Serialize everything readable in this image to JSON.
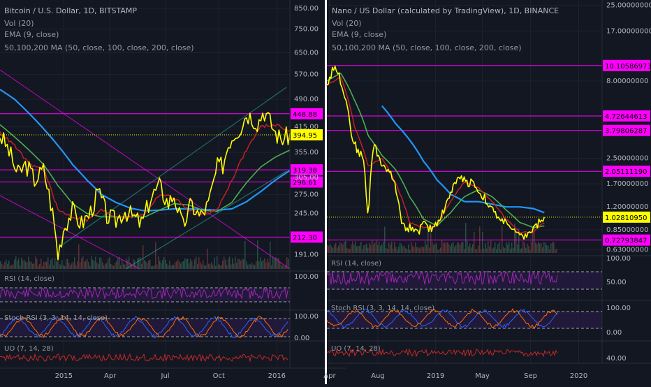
{
  "colors": {
    "background": "#131722",
    "divider": "#ffffff",
    "price_line": "#ffff00",
    "ema": "#c42026",
    "ma50": "#4caf50",
    "ma100": "#2196f3",
    "ma200": "#ffffff",
    "level": "#ff00ff",
    "rsi": "#9c27b0",
    "stoch_k": "#2962ff",
    "stoch_d": "#ff6d00",
    "uo": "#c62828",
    "volume": "#7a3a3a",
    "grid": "#1e2230",
    "label_text": "#b2b5be"
  },
  "chart_data": [
    {
      "type": "line",
      "title": "Bitcoin / U.S. Dollar, 1D, BITSTAMP",
      "indicators": [
        "Vol (20)",
        "EMA (9, close)",
        "50,100,200 MA (50, close, 100, close, 200, close)"
      ],
      "x_ticks": [
        "2015",
        "Apr",
        "Jul",
        "Oct",
        "2016"
      ],
      "y_scale": "log",
      "ylim": [
        175,
        880
      ],
      "y_ticks": [
        "850.00",
        "750.00",
        "650.00",
        "570.00",
        "490.00",
        "415.00",
        "355.00",
        "305.00",
        "275.00",
        "245.00",
        "191.00"
      ],
      "last_price": "394.95",
      "levels": [
        {
          "value": 448.88,
          "label": "448.88"
        },
        {
          "value": 319.38,
          "label": "319.38"
        },
        {
          "value": 296.61,
          "label": "296.61"
        },
        {
          "value": 212.3,
          "label": "212.30"
        }
      ],
      "series": [
        {
          "name": "close",
          "x": [
            0,
            0.03,
            0.06,
            0.09,
            0.12,
            0.15,
            0.18,
            0.2,
            0.22,
            0.25,
            0.28,
            0.31,
            0.34,
            0.37,
            0.4,
            0.43,
            0.46,
            0.49,
            0.52,
            0.55,
            0.58,
            0.6,
            0.63,
            0.66,
            0.69,
            0.72,
            0.75,
            0.77,
            0.79,
            0.81,
            0.83,
            0.85,
            0.87,
            0.89,
            0.91,
            0.93,
            0.95,
            0.97,
            1.0
          ],
          "values": [
            395,
            360,
            310,
            330,
            300,
            320,
            250,
            190,
            225,
            250,
            230,
            245,
            280,
            240,
            235,
            250,
            240,
            230,
            270,
            290,
            260,
            275,
            225,
            260,
            240,
            260,
            325,
            330,
            380,
            400,
            415,
            450,
            440,
            425,
            460,
            430,
            400,
            385,
            395
          ]
        },
        {
          "name": "EMA (9, close)",
          "x": [
            0,
            0.05,
            0.1,
            0.15,
            0.2,
            0.25,
            0.3,
            0.35,
            0.4,
            0.45,
            0.5,
            0.55,
            0.6,
            0.65,
            0.7,
            0.75,
            0.8,
            0.85,
            0.9,
            0.95,
            1.0
          ],
          "values": [
            400,
            370,
            330,
            320,
            250,
            240,
            235,
            250,
            240,
            240,
            245,
            275,
            270,
            250,
            245,
            250,
            300,
            360,
            415,
            420,
            405
          ]
        },
        {
          "name": "MA 50",
          "x": [
            0,
            0.05,
            0.1,
            0.15,
            0.2,
            0.25,
            0.3,
            0.35,
            0.4,
            0.45,
            0.5,
            0.55,
            0.6,
            0.65,
            0.7,
            0.75,
            0.8,
            0.85,
            0.9,
            0.95,
            1.0
          ],
          "values": [
            420,
            390,
            360,
            330,
            290,
            260,
            245,
            240,
            240,
            240,
            240,
            250,
            260,
            258,
            250,
            248,
            262,
            295,
            325,
            345,
            360
          ]
        },
        {
          "name": "MA 100",
          "x": [
            0,
            0.05,
            0.1,
            0.15,
            0.2,
            0.25,
            0.3,
            0.35,
            0.4,
            0.45,
            0.5,
            0.55,
            0.6,
            0.65,
            0.7,
            0.75,
            0.8,
            0.85,
            0.9,
            0.95,
            1.0
          ],
          "values": [
            520,
            490,
            450,
            410,
            370,
            330,
            300,
            275,
            262,
            253,
            249,
            250,
            252,
            252,
            251,
            250,
            252,
            263,
            280,
            300,
            318
          ]
        }
      ],
      "sub_panels": [
        {
          "name": "RSI (14, close)",
          "ticks": [
            "100.00"
          ]
        },
        {
          "name": "Stoch RSI (3, 3, 14, 14, close)",
          "ticks": [
            "100.00",
            "0.00"
          ]
        },
        {
          "name": "UO (7, 14, 28)",
          "ticks": []
        }
      ]
    },
    {
      "type": "line",
      "title": "Nano / US Dollar (calculated by TradingView), 1D, BINANCE",
      "indicators": [
        "Vol (20)",
        "EMA (9, close)",
        "50,100,200 MA (50, close, 100, close, 200, close)"
      ],
      "x_ticks": [
        "Apr",
        "Aug",
        "2019",
        "May",
        "Sep",
        "2020"
      ],
      "y_scale": "log",
      "ylim": [
        0.6,
        26
      ],
      "y_ticks": [
        "25.00000000",
        "17.00000000",
        "8.00000000",
        "2.50000000",
        "1.70000000",
        "1.20000000",
        "0.85000000",
        "0.63000000"
      ],
      "last_price": "1.02810950",
      "levels": [
        {
          "value": 10.10586973,
          "label": "10.10586973"
        },
        {
          "value": 4.72644613,
          "label": "4.72644613"
        },
        {
          "value": 3.79806287,
          "label": "3.79806287"
        },
        {
          "value": 2.0511119,
          "label": "2.05111190"
        },
        {
          "value": 0.72793847,
          "label": "0.72793847"
        }
      ],
      "series": [
        {
          "name": "close",
          "x": [
            0,
            0.03,
            0.05,
            0.07,
            0.09,
            0.11,
            0.13,
            0.15,
            0.17,
            0.19,
            0.21,
            0.23,
            0.25,
            0.27,
            0.29,
            0.31,
            0.33,
            0.35,
            0.37,
            0.39,
            0.41,
            0.43,
            0.45,
            0.47,
            0.49,
            0.51,
            0.53,
            0.55,
            0.57,
            0.59,
            0.61,
            0.63,
            0.65,
            0.67,
            0.69,
            0.71,
            0.73,
            0.75,
            0.77,
            0.79
          ],
          "values": [
            7.5,
            10.2,
            8.0,
            6.0,
            3.5,
            2.8,
            2.6,
            0.9,
            3.2,
            2.4,
            2.2,
            2.0,
            1.6,
            1.0,
            0.85,
            0.9,
            0.8,
            0.95,
            0.85,
            0.9,
            1.0,
            1.2,
            1.5,
            1.75,
            1.9,
            1.7,
            1.8,
            1.5,
            1.4,
            1.2,
            1.1,
            0.95,
            1.0,
            0.85,
            0.8,
            0.75,
            0.8,
            0.85,
            0.95,
            1.03
          ]
        },
        {
          "name": "EMA (9, close)",
          "x": [
            0,
            0.05,
            0.1,
            0.15,
            0.2,
            0.25,
            0.3,
            0.35,
            0.4,
            0.45,
            0.5,
            0.55,
            0.6,
            0.65,
            0.7,
            0.75,
            0.79
          ],
          "values": [
            7.5,
            8.5,
            4.0,
            2.2,
            2.5,
            1.7,
            0.95,
            0.88,
            0.9,
            1.3,
            1.75,
            1.6,
            1.3,
            1.0,
            0.82,
            0.82,
            0.95
          ]
        },
        {
          "name": "MA 50",
          "x": [
            0,
            0.05,
            0.1,
            0.15,
            0.2,
            0.25,
            0.3,
            0.35,
            0.4,
            0.45,
            0.5,
            0.55,
            0.6,
            0.65,
            0.7,
            0.75,
            0.79
          ],
          "values": [
            8.0,
            9.0,
            6.0,
            3.5,
            2.6,
            2.1,
            1.4,
            1.0,
            0.9,
            1.1,
            1.4,
            1.55,
            1.4,
            1.15,
            0.95,
            0.88,
            0.9
          ]
        },
        {
          "name": "MA 100",
          "x": [
            0.2,
            0.25,
            0.3,
            0.35,
            0.4,
            0.45,
            0.5,
            0.55,
            0.6,
            0.65,
            0.7,
            0.75,
            0.79
          ],
          "values": [
            5.5,
            4.2,
            3.3,
            2.4,
            1.8,
            1.45,
            1.3,
            1.3,
            1.25,
            1.2,
            1.2,
            1.17,
            1.1
          ]
        }
      ],
      "sub_panels": [
        {
          "name": "RSI (14, close)",
          "ticks": [
            "100.00",
            "50.00"
          ]
        },
        {
          "name": "Stoch RSI (3, 3, 14, 14, close)",
          "ticks": [
            "100.00",
            "0.00"
          ]
        },
        {
          "name": "UO (7, 14, 28)",
          "ticks": [
            "40.00"
          ]
        }
      ]
    }
  ]
}
